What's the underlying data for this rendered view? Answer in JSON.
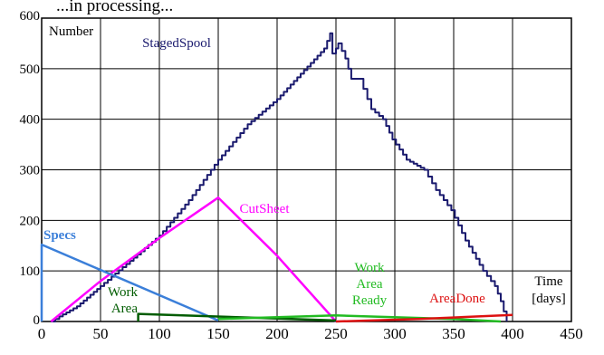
{
  "header": {
    "partial_title": "...in processing..."
  },
  "chart_data": {
    "type": "line",
    "ylabel": "Number",
    "xlabel_lines": [
      "Time",
      "[days]"
    ],
    "xlim": [
      0,
      450
    ],
    "ylim": [
      0,
      600
    ],
    "x_ticks": [
      0,
      50,
      100,
      150,
      200,
      250,
      300,
      350,
      400,
      450
    ],
    "y_ticks": [
      0,
      100,
      200,
      300,
      400,
      500,
      600
    ],
    "grid": true,
    "series": [
      {
        "name": "StagedSpool",
        "color": "#1a1a6e",
        "step": true,
        "points": [
          [
            8,
            0
          ],
          [
            15,
            10
          ],
          [
            30,
            30
          ],
          [
            50,
            70
          ],
          [
            75,
            120
          ],
          [
            100,
            170
          ],
          [
            125,
            240
          ],
          [
            150,
            320
          ],
          [
            175,
            390
          ],
          [
            200,
            440
          ],
          [
            220,
            490
          ],
          [
            240,
            540
          ],
          [
            245,
            570
          ],
          [
            247,
            530
          ],
          [
            250,
            540
          ],
          [
            252,
            550
          ],
          [
            258,
            520
          ],
          [
            263,
            480
          ],
          [
            270,
            480
          ],
          [
            280,
            420
          ],
          [
            290,
            400
          ],
          [
            298,
            360
          ],
          [
            310,
            320
          ],
          [
            325,
            300
          ],
          [
            335,
            260
          ],
          [
            348,
            220
          ],
          [
            360,
            160
          ],
          [
            375,
            100
          ],
          [
            385,
            70
          ],
          [
            390,
            40
          ],
          [
            395,
            0
          ]
        ],
        "label_lines": [
          "StagedSpool"
        ]
      },
      {
        "name": "CutSheet",
        "color": "#ff00ff",
        "points": [
          [
            8,
            0
          ],
          [
            50,
            80
          ],
          [
            100,
            165
          ],
          [
            150,
            245
          ],
          [
            200,
            130
          ],
          [
            250,
            0
          ]
        ],
        "label_lines": [
          "CutSheet"
        ]
      },
      {
        "name": "Specs",
        "color": "#3b7fd9",
        "points": [
          [
            0,
            0
          ],
          [
            0,
            152
          ],
          [
            150,
            2
          ]
        ],
        "label_lines": [
          "Specs"
        ]
      },
      {
        "name": "Work Area",
        "color": "#005c00",
        "points": [
          [
            82,
            0
          ],
          [
            82,
            15
          ],
          [
            250,
            2
          ]
        ],
        "label_lines": [
          "Work",
          "Area"
        ]
      },
      {
        "name": "Work Area Ready",
        "color": "#22bb22",
        "points": [
          [
            150,
            5
          ],
          [
            250,
            12
          ],
          [
            350,
            5
          ],
          [
            390,
            0
          ]
        ],
        "label_lines": [
          "Work",
          "Area",
          "Ready"
        ]
      },
      {
        "name": "AreaDone",
        "color": "#dd1111",
        "points": [
          [
            250,
            0
          ],
          [
            320,
            5
          ],
          [
            400,
            13
          ]
        ],
        "label_lines": [
          "AreaDone"
        ]
      }
    ]
  }
}
